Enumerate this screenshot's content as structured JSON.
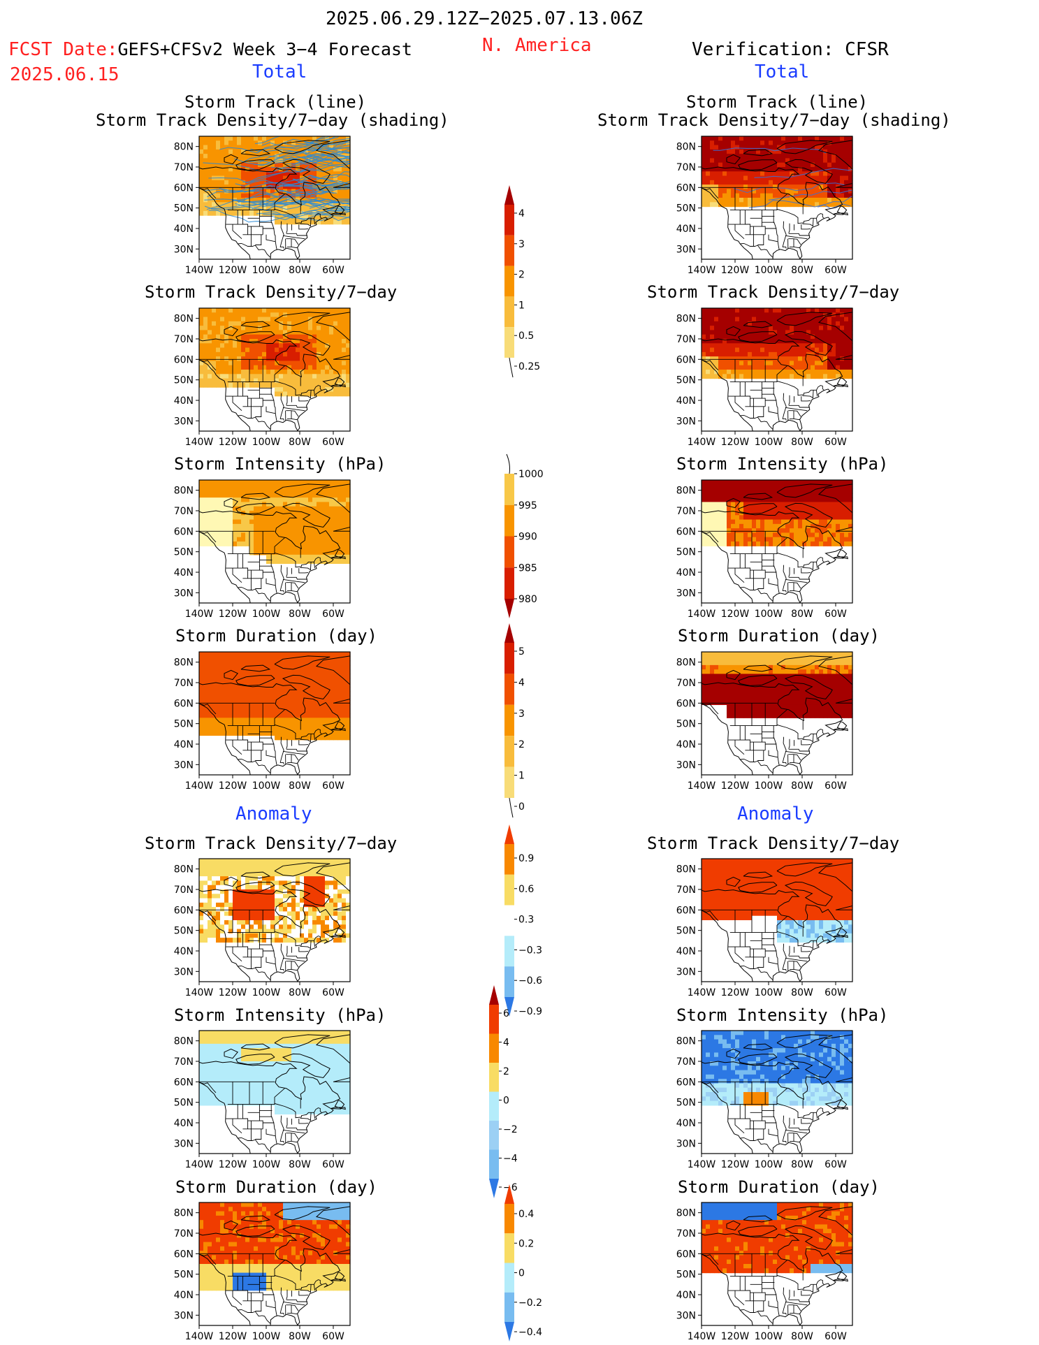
{
  "header": {
    "period": "2025.06.29.12Z−2025.07.13.06Z",
    "fcst_label": "FCST Date:",
    "model": "GEFS+CFSv2 Week 3−4 Forecast",
    "fcst_date": "2025.06.15",
    "region": "N. America",
    "verification": "Verification: CFSR"
  },
  "sections": {
    "total": "Total",
    "anomaly": "Anomaly"
  },
  "panel_titles": {
    "track_line": "Storm Track (line)",
    "track_shading": "Storm Track Density/7−day (shading)",
    "density": "Storm Track Density/7−day",
    "intensity": "Storm Intensity (hPa)",
    "duration": "Storm Duration (day)"
  },
  "axes": {
    "lat_ticks": [
      "80N",
      "70N",
      "60N",
      "50N",
      "40N",
      "30N"
    ],
    "lon_ticks": [
      "140W",
      "120W",
      "100W",
      "80W",
      "60W"
    ]
  },
  "colorbars": {
    "density_total": {
      "labels": [
        "4",
        "3",
        "2",
        "1",
        "0.5",
        "0.25"
      ],
      "colors": [
        "#a50000",
        "#d81e00",
        "#f05000",
        "#f89400",
        "#f8bc3c",
        "#f8dc78",
        "#fff8b4"
      ]
    },
    "intensity_total": {
      "labels": [
        "1000",
        "995",
        "990",
        "985",
        "980"
      ],
      "colors": [
        "#fff8b4",
        "#f8c848",
        "#f89400",
        "#f05000",
        "#d81e00",
        "#a50000"
      ]
    },
    "duration_total": {
      "labels": [
        "5",
        "4",
        "3",
        "2",
        "1",
        "0"
      ],
      "colors": [
        "#a50000",
        "#d81e00",
        "#f05000",
        "#f89400",
        "#f8bc3c",
        "#f8dc78",
        "#fff8b4"
      ]
    },
    "density_anom": {
      "labels": [
        "0.9",
        "0.6",
        "0.3",
        "−0.3",
        "−0.6",
        "−0.9"
      ],
      "colors": [
        "#f03c00",
        "#f88800",
        "#f8dc64",
        "#ffffff",
        "#b4ecfa",
        "#78bcf0",
        "#2c78e4"
      ]
    },
    "intensity_anom": {
      "labels": [
        "6",
        "4",
        "2",
        "0",
        "−2",
        "−4",
        "−6"
      ],
      "colors": [
        "#a50000",
        "#f03c00",
        "#f88800",
        "#f8dc64",
        "#b4ecfa",
        "#9cd0f4",
        "#78bcf0",
        "#2c78e4"
      ]
    },
    "duration_anom": {
      "labels": [
        "0.4",
        "0.2",
        "0",
        "−0.2",
        "−0.4"
      ],
      "colors": [
        "#f03c00",
        "#f88800",
        "#f8dc64",
        "#b4ecfa",
        "#78bcf0",
        "#2c78e4"
      ]
    }
  },
  "palette": {
    "land_line": "#000000",
    "track_line": "#2a8ad6"
  }
}
